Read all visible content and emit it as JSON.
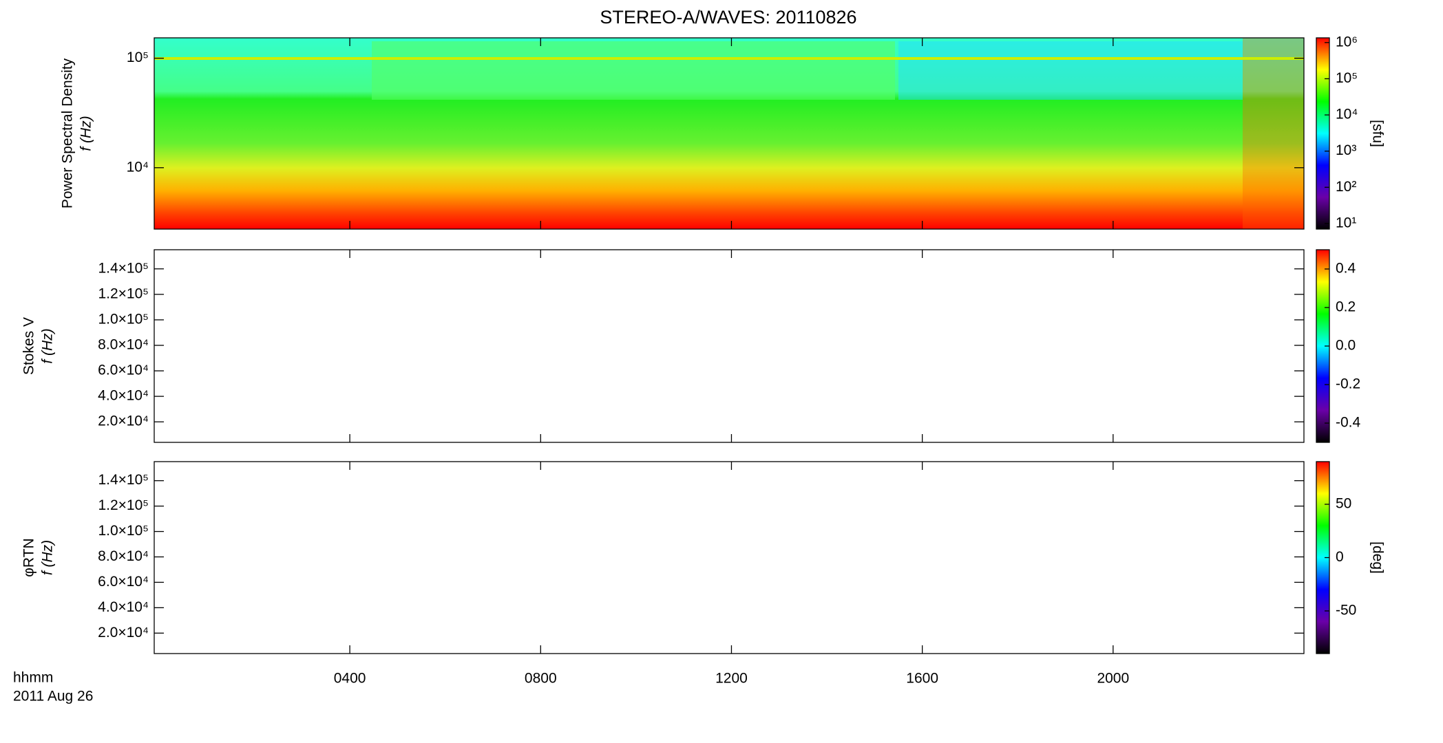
{
  "figure": {
    "title": "STEREO-A/WAVES: 20110826",
    "xlabel": "hhmm",
    "date": "2011 Aug 26",
    "xlim": [
      -0.1,
      24
    ],
    "xticks": [
      {
        "value": 4,
        "label": "0400"
      },
      {
        "value": 8,
        "label": "0800"
      },
      {
        "value": 12,
        "label": "1200"
      },
      {
        "value": 16,
        "label": "1600"
      },
      {
        "value": 20,
        "label": "2000"
      }
    ],
    "colormap": [
      "#000000",
      "#6a00a8",
      "#0000ff",
      "#00ffff",
      "#00ff00",
      "#ffff00",
      "#ff0000"
    ]
  },
  "chart_data": [
    {
      "type": "heatmap",
      "ylabel": [
        "Power Spectral Density",
        "f (Hz)"
      ],
      "ylog": true,
      "ylim": [
        2750,
        153500
      ],
      "yticks": [
        {
          "value": 10000,
          "label": "10⁴"
        },
        {
          "value": 100000,
          "label": "10⁵"
        }
      ],
      "colorbar": {
        "label": "[sfu]",
        "log": true,
        "lim": [
          7,
          1350000
        ],
        "ticks": [
          {
            "value": 10,
            "label": "10¹"
          },
          {
            "value": 100,
            "label": "10²"
          },
          {
            "value": 1000,
            "label": "10³"
          },
          {
            "value": 10000,
            "label": "10⁴"
          },
          {
            "value": 100000,
            "label": "10⁵"
          },
          {
            "value": 1000000,
            "label": "10⁶"
          }
        ]
      }
    },
    {
      "type": "heatmap",
      "ylabel": [
        "Stokes V",
        "f (Hz)"
      ],
      "ylog": false,
      "ylim": [
        3900,
        155000
      ],
      "yticks": [
        {
          "value": 20000,
          "label": "2.0×10⁴"
        },
        {
          "value": 40000,
          "label": "4.0×10⁴"
        },
        {
          "value": 60000,
          "label": "6.0×10⁴"
        },
        {
          "value": 80000,
          "label": "8.0×10⁴"
        },
        {
          "value": 100000,
          "label": "1.0×10⁵"
        },
        {
          "value": 120000,
          "label": "1.2×10⁵"
        },
        {
          "value": 140000,
          "label": "1.4×10⁵"
        }
      ],
      "colorbar": {
        "log": false,
        "lim": [
          -0.5,
          0.5
        ],
        "ticks": [
          -0.4,
          -0.2,
          {
            "value": 0,
            "label": "0.0"
          },
          0.2,
          0.4
        ]
      }
    },
    {
      "type": "heatmap",
      "ylabel": [
        "φRTN",
        "f (Hz)"
      ],
      "ylog": false,
      "ylim": [
        3900,
        155000
      ],
      "yticks": [
        {
          "value": 20000,
          "label": "2.0×10⁴"
        },
        {
          "value": 40000,
          "label": "4.0×10⁴"
        },
        {
          "value": 60000,
          "label": "6.0×10⁴"
        },
        {
          "value": 80000,
          "label": "8.0×10⁴"
        },
        {
          "value": 100000,
          "label": "1.0×10⁵"
        },
        {
          "value": 120000,
          "label": "1.2×10⁵"
        },
        {
          "value": 140000,
          "label": "1.4×10⁵"
        }
      ],
      "colorbar": {
        "label": "[deg]",
        "log": false,
        "lim": [
          -90,
          90
        ],
        "ticks": [
          -50,
          0,
          50
        ]
      }
    }
  ]
}
